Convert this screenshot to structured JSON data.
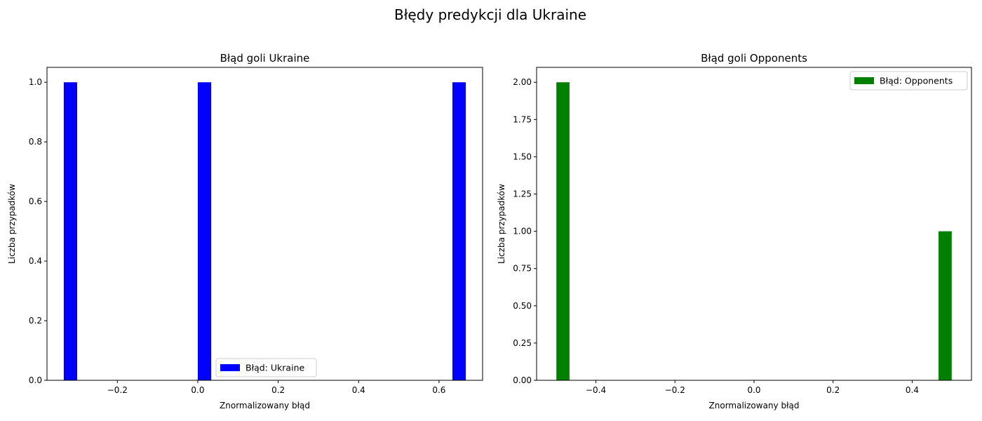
{
  "suptitle": "Błędy predykcji dla Ukraine",
  "chart_data": [
    {
      "type": "bar",
      "title": "Błąd goli Ukraine",
      "xlabel": "Znormalizowany błąd",
      "ylabel": "Liczba przypadków",
      "xlim": [
        -0.375,
        0.7083
      ],
      "ylim": [
        0,
        1.05
      ],
      "xticks": [
        -0.2,
        0.0,
        0.2,
        0.4,
        0.6
      ],
      "xtick_labels": [
        "−0.2",
        "0.0",
        "0.2",
        "0.4",
        "0.6"
      ],
      "yticks": [
        0.0,
        0.2,
        0.4,
        0.6,
        0.8,
        1.0
      ],
      "ytick_labels": [
        "0.0",
        "0.2",
        "0.4",
        "0.6",
        "0.8",
        "1.0"
      ],
      "bin_width": 0.0333,
      "series": [
        {
          "name": "Błąd: Ukraine",
          "color": "#0000ff",
          "bins": [
            {
              "x0": -0.3333,
              "value": 1
            },
            {
              "x0": 0.0,
              "value": 1
            },
            {
              "x0": 0.6333,
              "value": 1
            }
          ]
        }
      ],
      "legend_position": "lower-center",
      "grid": false
    },
    {
      "type": "bar",
      "title": "Błąd goli Opponents",
      "xlabel": "Znormalizowany błąd",
      "ylabel": "Liczba przypadków",
      "xlim": [
        -0.55,
        0.55
      ],
      "ylim": [
        0,
        2.1
      ],
      "xticks": [
        -0.4,
        -0.2,
        0.0,
        0.2,
        0.4
      ],
      "xtick_labels": [
        "−0.4",
        "−0.2",
        "0.0",
        "0.2",
        "0.4"
      ],
      "yticks": [
        0.0,
        0.25,
        0.5,
        0.75,
        1.0,
        1.25,
        1.5,
        1.75,
        2.0
      ],
      "ytick_labels": [
        "0.00",
        "0.25",
        "0.50",
        "0.75",
        "1.00",
        "1.25",
        "1.50",
        "1.75",
        "2.00"
      ],
      "bin_width": 0.0333,
      "series": [
        {
          "name": "Błąd: Opponents",
          "color": "#008000",
          "bins": [
            {
              "x0": -0.5,
              "value": 2
            },
            {
              "x0": 0.4667,
              "value": 1
            }
          ]
        }
      ],
      "legend_position": "upper-right",
      "grid": false
    }
  ]
}
